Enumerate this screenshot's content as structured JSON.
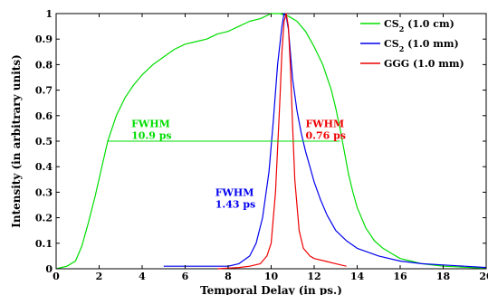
{
  "chart_data": {
    "type": "line",
    "xlabel": "Temporal Delay (in ps.)",
    "ylabel": "Intensity (in arbitrary units)",
    "xlim": [
      0,
      20
    ],
    "ylim": [
      0,
      1
    ],
    "xticks": [
      "0",
      "2",
      "4",
      "6",
      "8",
      "10",
      "12",
      "14",
      "16",
      "18",
      "20"
    ],
    "yticks": [
      "0",
      "0.1",
      "0.2",
      "0.3",
      "0.4",
      "0.5",
      "0.6",
      "0.7",
      "0.8",
      "0.9",
      "1"
    ],
    "grid": false,
    "legend_position": "top-right",
    "series": [
      {
        "name_base": "CS",
        "name_sub": "2",
        "name_suffix": " (1.0 cm)",
        "color": "#00dd00",
        "x": [
          0,
          0.5,
          0.9,
          1.2,
          1.5,
          1.8,
          2.1,
          2.4,
          2.8,
          3.2,
          3.6,
          4.0,
          4.5,
          5.0,
          5.5,
          6.0,
          6.5,
          7.0,
          7.5,
          8.0,
          8.5,
          9.0,
          9.5,
          10.0,
          10.4,
          10.8,
          11.2,
          11.6,
          12.0,
          12.4,
          12.8,
          13.0,
          13.2,
          13.4,
          13.6,
          13.8,
          14.0,
          14.4,
          14.8,
          15.2,
          15.6,
          16.0,
          16.5,
          17.0,
          17.5,
          18.0,
          18.5,
          19.0,
          19.5,
          20.0
        ],
        "y": [
          0.0,
          0.01,
          0.03,
          0.09,
          0.18,
          0.28,
          0.39,
          0.5,
          0.6,
          0.67,
          0.72,
          0.76,
          0.8,
          0.83,
          0.86,
          0.88,
          0.89,
          0.9,
          0.92,
          0.93,
          0.95,
          0.97,
          0.98,
          1.0,
          1.0,
          0.99,
          0.97,
          0.93,
          0.87,
          0.8,
          0.7,
          0.63,
          0.55,
          0.46,
          0.37,
          0.3,
          0.24,
          0.16,
          0.11,
          0.08,
          0.06,
          0.04,
          0.03,
          0.02,
          0.015,
          0.01,
          0.008,
          0.006,
          0.004,
          0.003
        ]
      },
      {
        "name_base": "CS",
        "name_sub": "2",
        "name_suffix": " (1.0 mm)",
        "color": "#0000ee",
        "x": [
          5.0,
          6.0,
          7.0,
          8.0,
          8.5,
          9.0,
          9.3,
          9.6,
          9.9,
          10.1,
          10.3,
          10.5,
          10.6,
          10.7,
          10.8,
          10.9,
          11.0,
          11.2,
          11.4,
          11.6,
          11.8,
          12.0,
          12.3,
          12.6,
          13.0,
          13.5,
          14.0,
          15.0,
          16.0,
          17.0,
          18.0,
          19.0,
          20.0
        ],
        "y": [
          0.01,
          0.01,
          0.01,
          0.01,
          0.02,
          0.05,
          0.1,
          0.2,
          0.38,
          0.58,
          0.8,
          0.95,
          1.0,
          0.99,
          0.94,
          0.84,
          0.74,
          0.62,
          0.53,
          0.46,
          0.4,
          0.34,
          0.27,
          0.21,
          0.15,
          0.11,
          0.08,
          0.05,
          0.03,
          0.02,
          0.015,
          0.01,
          0.005
        ]
      },
      {
        "name_base": "GGG",
        "name_sub": "",
        "name_suffix": " (1.0 mm)",
        "color": "#ee0000",
        "x": [
          7.5,
          8.5,
          9.0,
          9.5,
          9.8,
          10.0,
          10.2,
          10.4,
          10.5,
          10.6,
          10.7,
          10.8,
          10.9,
          11.0,
          11.1,
          11.3,
          11.5,
          11.8,
          12.0,
          12.5,
          13.0,
          13.5
        ],
        "y": [
          0.0,
          0.005,
          0.01,
          0.02,
          0.05,
          0.1,
          0.3,
          0.65,
          0.85,
          0.97,
          1.0,
          0.95,
          0.78,
          0.55,
          0.35,
          0.15,
          0.08,
          0.05,
          0.04,
          0.03,
          0.02,
          0.01
        ]
      }
    ],
    "fwhm_line": {
      "x1": 2.4,
      "x2": 13.2,
      "y": 0.5,
      "color": "#00dd00"
    },
    "annotations": [
      {
        "lines": [
          "FWHM",
          "10.9 ps"
        ],
        "x": 3.5,
        "y": 0.555,
        "color": "#00dd00"
      },
      {
        "lines": [
          "FWHM",
          "0.76 ps"
        ],
        "x": 11.6,
        "y": 0.555,
        "color": "#ee0000"
      },
      {
        "lines": [
          "FWHM",
          "1.43 ps"
        ],
        "x": 7.4,
        "y": 0.285,
        "color": "#0000ee"
      }
    ]
  }
}
